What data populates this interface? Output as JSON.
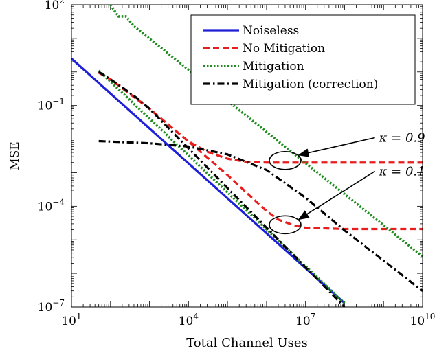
{
  "chart_data": {
    "type": "line",
    "title": "",
    "xlabel": "Total Channel Uses",
    "ylabel": "MSE",
    "x_scale": "log10",
    "y_scale": "log10",
    "xlim": [
      10,
      10000000000
    ],
    "ylim": [
      1e-07,
      100
    ],
    "x_ticks": [
      {
        "value": 10,
        "base": "10",
        "exp": "1"
      },
      {
        "value": 10000,
        "base": "10",
        "exp": "4"
      },
      {
        "value": 10000000,
        "base": "10",
        "exp": "7"
      },
      {
        "value": 10000000000,
        "base": "10",
        "exp": "10"
      }
    ],
    "y_ticks": [
      {
        "value": 1e-07,
        "base": "10",
        "exp": "−7"
      },
      {
        "value": 0.0001,
        "base": "10",
        "exp": "−4"
      },
      {
        "value": 0.1,
        "base": "10",
        "exp": "−1"
      },
      {
        "value": 100,
        "base": "10",
        "exp": "2"
      }
    ],
    "grid": false,
    "legend_position": "top-right",
    "series": [
      {
        "name": "Noiseless",
        "color": "#1f1fd6",
        "dash": "solid",
        "width": 3.2,
        "points": [
          [
            10,
            2.5
          ],
          [
            100000000,
            1.3e-07
          ]
        ]
      },
      {
        "name": "No Mitigation",
        "color": "#e81e1e",
        "dash": "dashed",
        "width": 3.2,
        "points": [
          [
            50,
            0.95
          ],
          [
            100,
            0.6
          ],
          [
            200,
            0.33
          ],
          [
            500,
            0.15
          ],
          [
            1000,
            0.08
          ],
          [
            3000,
            0.027
          ],
          [
            10000,
            0.0085
          ],
          [
            30000,
            0.0042
          ],
          [
            100000,
            0.0026
          ],
          [
            300000,
            0.0021
          ],
          [
            1000000,
            0.002
          ],
          [
            10000000,
            0.002
          ],
          [
            10000000000,
            0.002
          ]
        ]
      },
      {
        "name": "No Mitigation",
        "color": "#e81e1e",
        "dash": "dashed",
        "width": 3.2,
        "points": [
          [
            50,
            1.0
          ],
          [
            100,
            0.6
          ],
          [
            1000,
            0.08
          ],
          [
            10000,
            0.0085
          ],
          [
            100000,
            0.00085
          ],
          [
            500000,
            0.00015
          ],
          [
            1000000,
            7.2e-05
          ],
          [
            2000000,
            4e-05
          ],
          [
            5000000,
            2.7e-05
          ],
          [
            10000000,
            2.3e-05
          ],
          [
            100000000,
            2.1e-05
          ],
          [
            10000000000,
            2.1e-05
          ]
        ]
      },
      {
        "name": "Mitigation",
        "color": "#1e8c1e",
        "dash": "dotted",
        "width": 3.6,
        "points": [
          [
            100,
            100
          ],
          [
            160,
            45
          ],
          [
            250,
            45
          ],
          [
            400,
            23
          ],
          [
            10000000000,
            3.2e-06
          ]
        ]
      },
      {
        "name": "Mitigation",
        "color": "#1e8c1e",
        "dash": "dotted",
        "width": 3.6,
        "points": [
          [
            50,
            1.1
          ],
          [
            100000000,
            1.3e-07
          ]
        ]
      },
      {
        "name": "Mitigation (correction)",
        "color": "#000000",
        "dash": "dashdot",
        "width": 3.2,
        "points": [
          [
            50,
            0.0087
          ],
          [
            1000,
            0.0075
          ],
          [
            10000,
            0.006
          ],
          [
            100000,
            0.0035
          ],
          [
            1000000,
            0.0012
          ],
          [
            10000000,
            0.00018
          ],
          [
            100000000,
            1.9e-05
          ],
          [
            10000000000,
            3e-07
          ]
        ]
      },
      {
        "name": "Mitigation (correction)",
        "color": "#000000",
        "dash": "dashdot",
        "width": 3.2,
        "points": [
          [
            50,
            1.0
          ],
          [
            100,
            0.6
          ],
          [
            200,
            0.35
          ],
          [
            500,
            0.16
          ],
          [
            1000,
            0.08
          ],
          [
            100000000,
            1e-07
          ]
        ]
      }
    ],
    "annotations": [
      {
        "text": "κ = 0.9",
        "ellipse_center": [
          3000000,
          0.0023
        ],
        "arrow_tail": [
          600000000,
          0.011
        ]
      },
      {
        "text": "κ = 0.1",
        "ellipse_center": [
          3000000,
          2.8e-05
        ],
        "arrow_tail": [
          600000000,
          0.0011
        ]
      }
    ]
  },
  "legend": {
    "entries": [
      "Noiseless",
      "No Mitigation",
      "Mitigation",
      "Mitigation (correction)"
    ]
  }
}
